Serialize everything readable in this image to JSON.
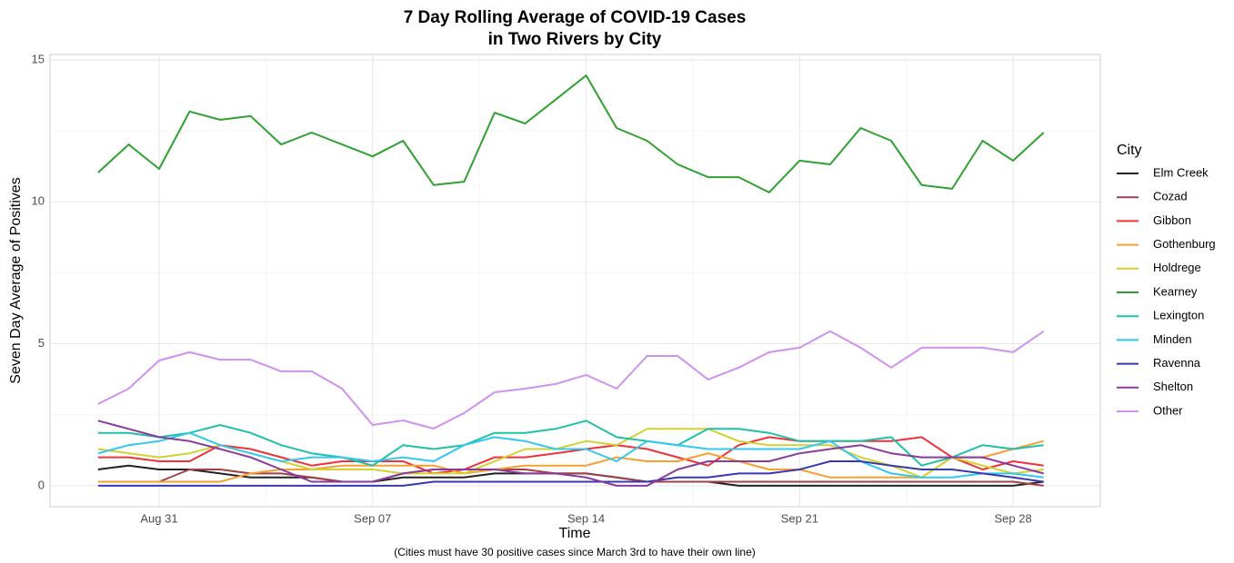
{
  "chart_data": {
    "type": "line",
    "title": [
      "7 Day Rolling Average of COVID-19 Cases",
      "in Two Rivers by City"
    ],
    "x_label": "Time",
    "y_label": "Seven Day Average of Positives",
    "caption": "(Cities must have 30 positive cases since March 3rd to have their own line)",
    "legend_title": "City",
    "legend": "right",
    "grid": true,
    "categories": [
      null,
      null,
      "Aug 31",
      null,
      null,
      null,
      null,
      null,
      null,
      "Sep 07",
      null,
      null,
      null,
      null,
      null,
      null,
      "Sep 14",
      null,
      null,
      null,
      null,
      null,
      null,
      "Sep 21",
      null,
      null,
      null,
      null,
      null,
      null,
      "Sep 28",
      null
    ],
    "ylim": [
      -0.74,
      15.19
    ],
    "yticks": [
      0,
      5,
      10,
      15
    ],
    "series": [
      {
        "name": "Elm Creek",
        "color": "#222222",
        "values": [
          0.57,
          0.71,
          0.57,
          0.57,
          0.43,
          0.29,
          0.29,
          0.29,
          0.14,
          0.14,
          0.29,
          0.29,
          0.29,
          0.43,
          0.43,
          0.43,
          0.43,
          0.29,
          0.14,
          0.14,
          0.14,
          0,
          0,
          0,
          0,
          0,
          0,
          0,
          0,
          0,
          0,
          0.14
        ]
      },
      {
        "name": "Cozad",
        "color": "#a0404a",
        "values": [
          0.14,
          0.14,
          0.14,
          0.57,
          0.57,
          0.43,
          0.43,
          0.29,
          0.14,
          0.14,
          0.43,
          0.57,
          0.57,
          0.57,
          0.57,
          0.43,
          0.43,
          0.29,
          0.14,
          0.14,
          0.14,
          0.14,
          0.14,
          0.14,
          0.14,
          0.14,
          0.14,
          0.14,
          0.14,
          0.14,
          0.14,
          0
        ]
      },
      {
        "name": "Gibbon",
        "color": "#f0303a",
        "values": [
          1.0,
          1.0,
          0.86,
          0.86,
          1.43,
          1.29,
          1.0,
          0.71,
          0.86,
          0.86,
          0.86,
          0.43,
          0.57,
          1.0,
          1.0,
          1.14,
          1.29,
          1.43,
          1.29,
          1.0,
          0.71,
          1.43,
          1.71,
          1.57,
          1.57,
          1.57,
          1.57,
          1.71,
          1.0,
          0.57,
          0.86,
          0.71
        ]
      },
      {
        "name": "Gothenburg",
        "color": "#f5a030",
        "values": [
          0.14,
          0.14,
          0.14,
          0.14,
          0.14,
          0.43,
          0.57,
          0.57,
          0.71,
          0.71,
          0.71,
          0.71,
          0.43,
          0.57,
          0.71,
          0.71,
          0.71,
          1.0,
          0.86,
          0.86,
          1.14,
          0.86,
          0.57,
          0.57,
          0.29,
          0.29,
          0.29,
          0.29,
          1.0,
          1.0,
          1.29,
          1.57
        ]
      },
      {
        "name": "Holdrege",
        "color": "#d4d030",
        "values": [
          1.29,
          1.14,
          1.0,
          1.14,
          1.43,
          1.14,
          0.86,
          0.57,
          0.57,
          0.57,
          0.43,
          0.43,
          0.43,
          0.86,
          1.29,
          1.29,
          1.57,
          1.43,
          2.0,
          2.0,
          2.0,
          1.57,
          1.43,
          1.43,
          1.43,
          1.0,
          0.71,
          0.29,
          1.0,
          0.71,
          0.43,
          0.57
        ]
      },
      {
        "name": "Kearney",
        "color": "#30a030",
        "values": [
          11.03,
          12.02,
          11.16,
          13.18,
          12.89,
          13.02,
          12.02,
          12.44,
          12.02,
          11.6,
          12.15,
          10.59,
          10.71,
          13.14,
          12.76,
          13.6,
          14.45,
          12.6,
          12.15,
          11.32,
          10.87,
          10.87,
          10.33,
          11.45,
          11.32,
          12.6,
          12.15,
          10.59,
          10.46,
          12.15,
          11.45,
          12.44
        ]
      },
      {
        "name": "Lexington",
        "color": "#20c0a8",
        "values": [
          1.86,
          1.86,
          1.71,
          1.86,
          2.14,
          1.86,
          1.43,
          1.14,
          1.0,
          0.71,
          1.43,
          1.29,
          1.43,
          1.86,
          1.86,
          2.0,
          2.29,
          1.71,
          1.57,
          1.43,
          2.0,
          2.0,
          1.86,
          1.57,
          1.57,
          1.57,
          1.71,
          0.71,
          1.0,
          1.43,
          1.29,
          1.43
        ]
      },
      {
        "name": "Minden",
        "color": "#30c8f0",
        "values": [
          1.14,
          1.43,
          1.57,
          1.86,
          1.43,
          1.14,
          0.86,
          1.0,
          1.0,
          0.86,
          1.0,
          0.86,
          1.43,
          1.71,
          1.57,
          1.29,
          1.29,
          0.86,
          1.57,
          1.43,
          1.29,
          1.29,
          1.29,
          1.29,
          1.57,
          0.86,
          0.43,
          0.29,
          0.29,
          0.43,
          0.43,
          0.29
        ]
      },
      {
        "name": "Ravenna",
        "color": "#3838b0",
        "values": [
          0,
          0,
          0,
          0,
          0,
          0,
          0,
          0,
          0,
          0,
          0,
          0.14,
          0.14,
          0.14,
          0.14,
          0.14,
          0.14,
          0.14,
          0.14,
          0.29,
          0.29,
          0.43,
          0.43,
          0.57,
          0.86,
          0.86,
          0.71,
          0.57,
          0.57,
          0.43,
          0.29,
          0.14
        ]
      },
      {
        "name": "Shelton",
        "color": "#8a3a9a",
        "values": [
          2.29,
          2.0,
          1.71,
          1.57,
          1.29,
          1.0,
          0.57,
          0.14,
          0.14,
          0.14,
          0.43,
          0.57,
          0.57,
          0.57,
          0.43,
          0.43,
          0.29,
          0,
          0,
          0.57,
          0.86,
          0.86,
          0.86,
          1.14,
          1.29,
          1.43,
          1.14,
          1.0,
          1.0,
          1.0,
          0.71,
          0.43
        ]
      },
      {
        "name": "Other",
        "color": "#d090f0",
        "values": [
          2.88,
          3.42,
          4.41,
          4.7,
          4.44,
          4.44,
          4.03,
          4.03,
          3.42,
          2.14,
          2.3,
          2.01,
          2.56,
          3.29,
          3.42,
          3.58,
          3.9,
          3.42,
          4.57,
          4.57,
          3.74,
          4.16,
          4.7,
          4.86,
          5.44,
          4.86,
          4.16,
          4.86,
          4.86,
          4.86,
          4.7,
          5.44
        ]
      }
    ]
  }
}
